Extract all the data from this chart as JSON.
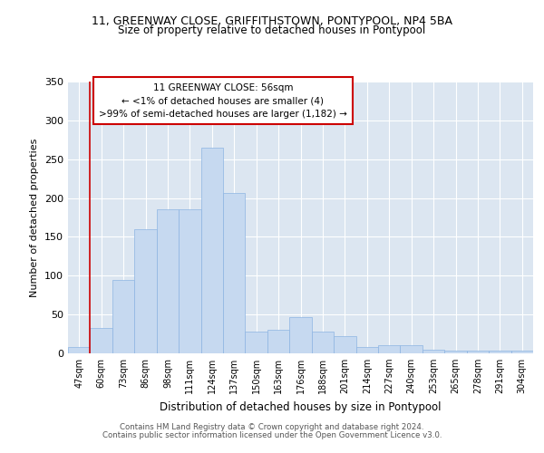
{
  "title1": "11, GREENWAY CLOSE, GRIFFITHSTOWN, PONTYPOOL, NP4 5BA",
  "title2": "Size of property relative to detached houses in Pontypool",
  "xlabel": "Distribution of detached houses by size in Pontypool",
  "ylabel": "Number of detached properties",
  "footer1": "Contains HM Land Registry data © Crown copyright and database right 2024.",
  "footer2": "Contains public sector information licensed under the Open Government Licence v3.0.",
  "annotation_line1": "11 GREENWAY CLOSE: 56sqm",
  "annotation_line2": "← <1% of detached houses are smaller (4)",
  "annotation_line3": ">99% of semi-detached houses are larger (1,182) →",
  "bar_labels": [
    "47sqm",
    "60sqm",
    "73sqm",
    "86sqm",
    "98sqm",
    "111sqm",
    "124sqm",
    "137sqm",
    "150sqm",
    "163sqm",
    "176sqm",
    "188sqm",
    "201sqm",
    "214sqm",
    "227sqm",
    "240sqm",
    "253sqm",
    "265sqm",
    "278sqm",
    "291sqm",
    "304sqm"
  ],
  "bar_values": [
    8,
    33,
    95,
    160,
    185,
    185,
    265,
    207,
    28,
    30,
    47,
    28,
    22,
    8,
    11,
    11,
    5,
    4,
    4,
    4,
    4
  ],
  "bar_color": "#c6d9f0",
  "bar_edge_color": "#8db4e2",
  "marker_color": "#cc0000",
  "plot_bg_color": "#dce6f1",
  "annotation_box_color": "#cc0000",
  "ylim": [
    0,
    350
  ],
  "yticks": [
    0,
    50,
    100,
    150,
    200,
    250,
    300,
    350
  ],
  "grid_color": "#ffffff",
  "figsize": [
    6.0,
    5.0
  ],
  "dpi": 100
}
